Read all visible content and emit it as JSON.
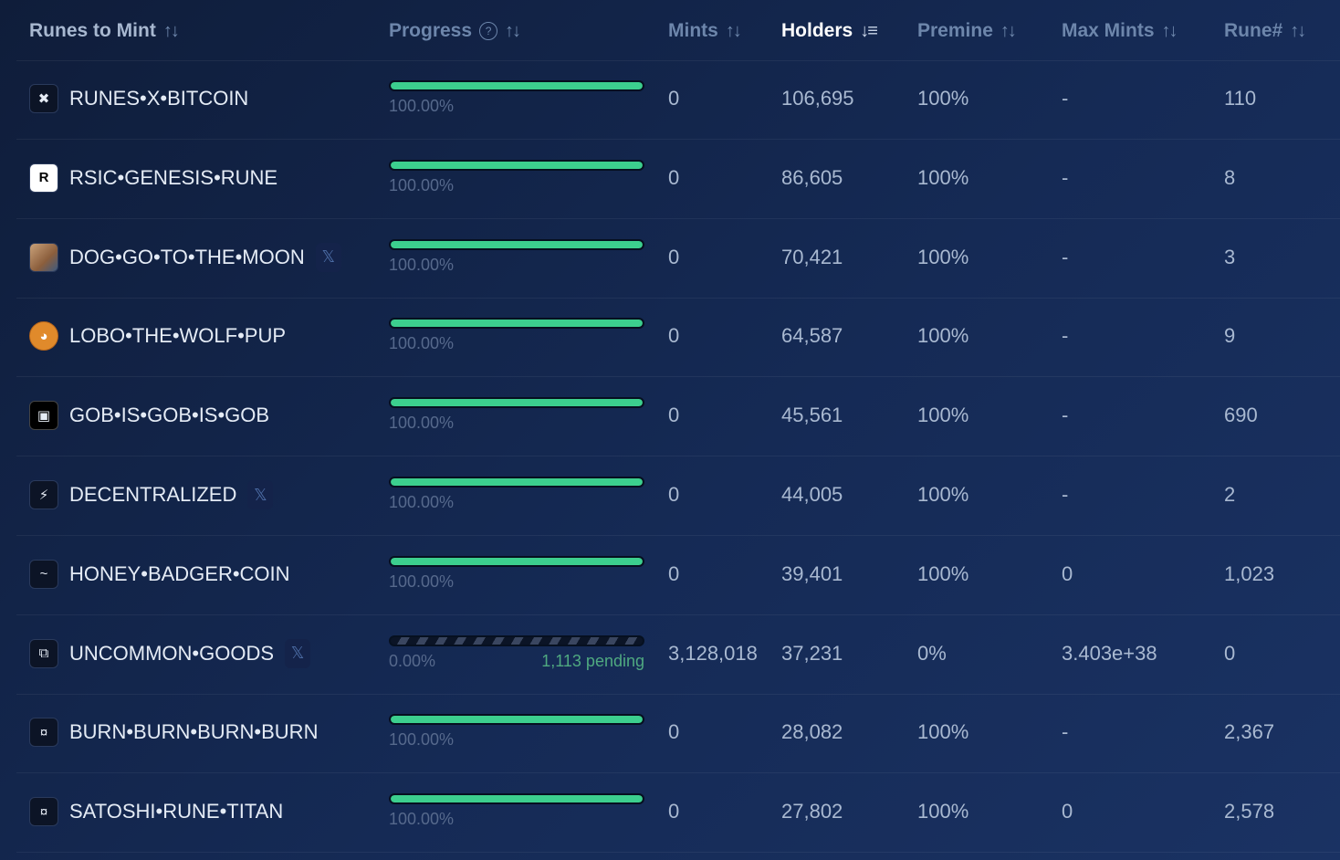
{
  "headers": {
    "name": "Runes to Mint",
    "progress": "Progress",
    "mints": "Mints",
    "holders": "Holders",
    "premine": "Premine",
    "max_mints": "Max Mints",
    "rune_number": "Rune#"
  },
  "icons": {
    "sort": "↑↓",
    "sort_desc": "↓≡",
    "help": "?",
    "x": "𝕏"
  },
  "rows": [
    {
      "name": "RUNES•X•BITCOIN",
      "logo": "✖",
      "x": false,
      "progress": 1.0,
      "pct": "100.00%",
      "pending": "",
      "mints": "0",
      "holders": "106,695",
      "premine": "100%",
      "max": "-",
      "rune": "110"
    },
    {
      "name": "RSIC•GENESIS•RUNE",
      "logo": "R",
      "x": false,
      "progress": 1.0,
      "pct": "100.00%",
      "pending": "",
      "mints": "0",
      "holders": "86,605",
      "premine": "100%",
      "max": "-",
      "rune": "8"
    },
    {
      "name": "DOG•GO•TO•THE•MOON",
      "logo": "",
      "x": true,
      "progress": 1.0,
      "pct": "100.00%",
      "pending": "",
      "mints": "0",
      "holders": "70,421",
      "premine": "100%",
      "max": "-",
      "rune": "3"
    },
    {
      "name": "LOBO•THE•WOLF•PUP",
      "logo": "◕",
      "x": false,
      "progress": 1.0,
      "pct": "100.00%",
      "pending": "",
      "mints": "0",
      "holders": "64,587",
      "premine": "100%",
      "max": "-",
      "rune": "9"
    },
    {
      "name": "GOB•IS•GOB•IS•GOB",
      "logo": "▣",
      "x": false,
      "progress": 1.0,
      "pct": "100.00%",
      "pending": "",
      "mints": "0",
      "holders": "45,561",
      "premine": "100%",
      "max": "-",
      "rune": "690"
    },
    {
      "name": "DECENTRALIZED",
      "logo": "⚡",
      "x": true,
      "progress": 1.0,
      "pct": "100.00%",
      "pending": "",
      "mints": "0",
      "holders": "44,005",
      "premine": "100%",
      "max": "-",
      "rune": "2"
    },
    {
      "name": "HONEY•BADGER•COIN",
      "logo": "~",
      "x": false,
      "progress": 1.0,
      "pct": "100.00%",
      "pending": "",
      "mints": "0",
      "holders": "39,401",
      "premine": "100%",
      "max": "0",
      "rune": "1,023"
    },
    {
      "name": "UNCOMMON•GOODS",
      "logo": "⧉",
      "x": true,
      "progress": 0.0,
      "pct": "0.00%",
      "pending": "1,113 pending",
      "mints": "3,128,018",
      "holders": "37,231",
      "premine": "0%",
      "max": "3.403e+38",
      "rune": "0"
    },
    {
      "name": "BURN•BURN•BURN•BURN",
      "logo": "¤",
      "x": false,
      "progress": 1.0,
      "pct": "100.00%",
      "pending": "",
      "mints": "0",
      "holders": "28,082",
      "premine": "100%",
      "max": "-",
      "rune": "2,367"
    },
    {
      "name": "SATOSHI•RUNE•TITAN",
      "logo": "¤",
      "x": false,
      "progress": 1.0,
      "pct": "100.00%",
      "pending": "",
      "mints": "0",
      "holders": "27,802",
      "premine": "100%",
      "max": "0",
      "rune": "2,578"
    }
  ]
}
